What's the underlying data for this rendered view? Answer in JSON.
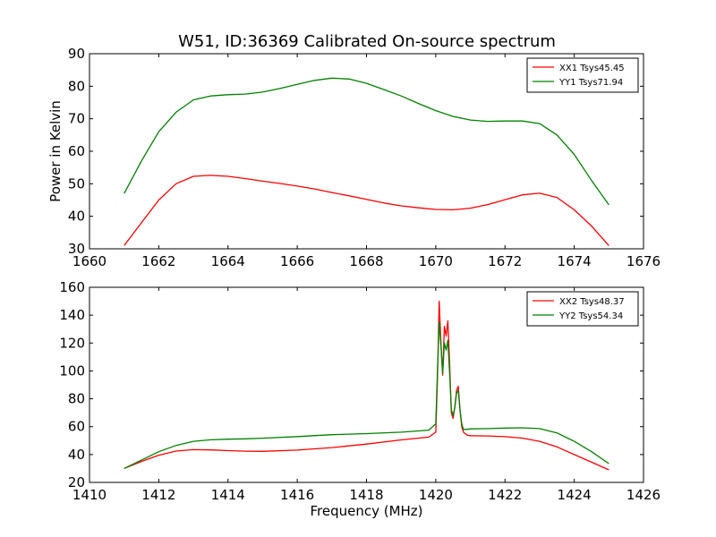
{
  "figure_title": "W51, ID:36369 Calibrated On-source spectrum",
  "chart_data": [
    {
      "type": "line",
      "title": "W51, ID:36369 Calibrated On-source spectrum",
      "xlabel": "",
      "ylabel": "Power in Kelvin",
      "xlim": [
        1660,
        1676
      ],
      "ylim": [
        30,
        90
      ],
      "xticks": [
        1660,
        1662,
        1664,
        1666,
        1668,
        1670,
        1672,
        1674,
        1676
      ],
      "yticks": [
        30,
        40,
        50,
        60,
        70,
        80,
        90
      ],
      "grid": false,
      "legend_position": "top-right",
      "series": [
        {
          "name": "XX1 Tsys45.45",
          "color": "#ff0000",
          "x": [
            1661.0,
            1661.5,
            1662.0,
            1662.5,
            1663.0,
            1663.5,
            1664.0,
            1664.5,
            1665.0,
            1665.5,
            1666.0,
            1666.5,
            1667.0,
            1667.5,
            1668.0,
            1668.5,
            1669.0,
            1669.5,
            1670.0,
            1670.5,
            1671.0,
            1671.5,
            1672.0,
            1672.5,
            1673.0,
            1673.5,
            1674.0,
            1674.5,
            1675.0
          ],
          "y": [
            31,
            38,
            45,
            50,
            52.3,
            52.6,
            52.3,
            51.6,
            50.8,
            50.1,
            49.3,
            48.4,
            47.3,
            46.3,
            45.2,
            44.1,
            43.2,
            42.6,
            42.1,
            42.0,
            42.5,
            43.6,
            45.1,
            46.6,
            47.1,
            45.8,
            42.0,
            37.0,
            31.0
          ]
        },
        {
          "name": "YY1 Tsys71.94",
          "color": "#008000",
          "x": [
            1661.0,
            1661.5,
            1662.0,
            1662.5,
            1663.0,
            1663.5,
            1664.0,
            1664.5,
            1665.0,
            1665.5,
            1666.0,
            1666.5,
            1667.0,
            1667.5,
            1668.0,
            1668.5,
            1669.0,
            1669.5,
            1670.0,
            1670.5,
            1671.0,
            1671.5,
            1672.0,
            1672.5,
            1673.0,
            1673.5,
            1674.0,
            1674.5,
            1675.0
          ],
          "y": [
            47,
            57,
            66,
            72,
            75.8,
            77.0,
            77.4,
            77.6,
            78.2,
            79.3,
            80.6,
            81.8,
            82.5,
            82.2,
            80.9,
            79.0,
            77.0,
            74.7,
            72.5,
            70.7,
            69.6,
            69.2,
            69.3,
            69.3,
            68.5,
            65.0,
            59.0,
            51.0,
            43.5
          ]
        }
      ]
    },
    {
      "type": "line",
      "title": "",
      "xlabel": "Frequency (MHz)",
      "ylabel": "",
      "xlim": [
        1410,
        1426
      ],
      "ylim": [
        20,
        160
      ],
      "xticks": [
        1410,
        1412,
        1414,
        1416,
        1418,
        1420,
        1422,
        1424,
        1426
      ],
      "yticks": [
        20,
        40,
        60,
        80,
        100,
        120,
        140,
        160
      ],
      "grid": false,
      "legend_position": "top-right",
      "series": [
        {
          "name": "XX2 Tsys48.37",
          "color": "#ff0000",
          "x": [
            1411.0,
            1411.5,
            1412.0,
            1412.5,
            1413.0,
            1413.5,
            1414.0,
            1414.5,
            1415.0,
            1416.0,
            1417.0,
            1418.0,
            1419.0,
            1419.8,
            1420.0,
            1420.05,
            1420.1,
            1420.15,
            1420.2,
            1420.25,
            1420.3,
            1420.35,
            1420.4,
            1420.45,
            1420.5,
            1420.55,
            1420.6,
            1420.65,
            1420.7,
            1420.75,
            1420.8,
            1420.9,
            1421.0,
            1421.5,
            1422.0,
            1422.5,
            1423.0,
            1423.5,
            1424.0,
            1424.5,
            1425.0
          ],
          "y": [
            30,
            35,
            39.5,
            42.5,
            43.5,
            43.3,
            42.8,
            42.4,
            42.3,
            43.2,
            45.0,
            47.5,
            50.5,
            52.5,
            56,
            95,
            150,
            120,
            97,
            132,
            125,
            136,
            105,
            70,
            66,
            74,
            86,
            89,
            72,
            60,
            56,
            54,
            53.5,
            53.3,
            52.8,
            51.8,
            49.5,
            45.5,
            40.0,
            34.5,
            29.0
          ]
        },
        {
          "name": "YY2 Tsys54.34",
          "color": "#008000",
          "x": [
            1411.0,
            1411.5,
            1412.0,
            1412.5,
            1413.0,
            1413.5,
            1414.0,
            1414.5,
            1415.0,
            1416.0,
            1417.0,
            1418.0,
            1419.0,
            1419.8,
            1420.0,
            1420.05,
            1420.1,
            1420.15,
            1420.2,
            1420.25,
            1420.3,
            1420.35,
            1420.4,
            1420.45,
            1420.5,
            1420.55,
            1420.6,
            1420.65,
            1420.7,
            1420.75,
            1420.8,
            1420.9,
            1421.0,
            1421.5,
            1422.0,
            1422.5,
            1423.0,
            1423.5,
            1424.0,
            1424.5,
            1425.0
          ],
          "y": [
            30,
            36,
            42,
            46.5,
            49.5,
            50.6,
            51.0,
            51.3,
            51.7,
            52.9,
            54.2,
            55.0,
            56.0,
            57.5,
            62,
            100,
            135,
            118,
            98,
            120,
            115,
            122,
            98,
            72,
            68,
            74,
            84,
            86,
            72,
            62,
            58,
            58.1,
            58.4,
            58.6,
            59.0,
            59.2,
            58.6,
            55.5,
            49.5,
            42.0,
            33.5
          ]
        }
      ]
    }
  ]
}
